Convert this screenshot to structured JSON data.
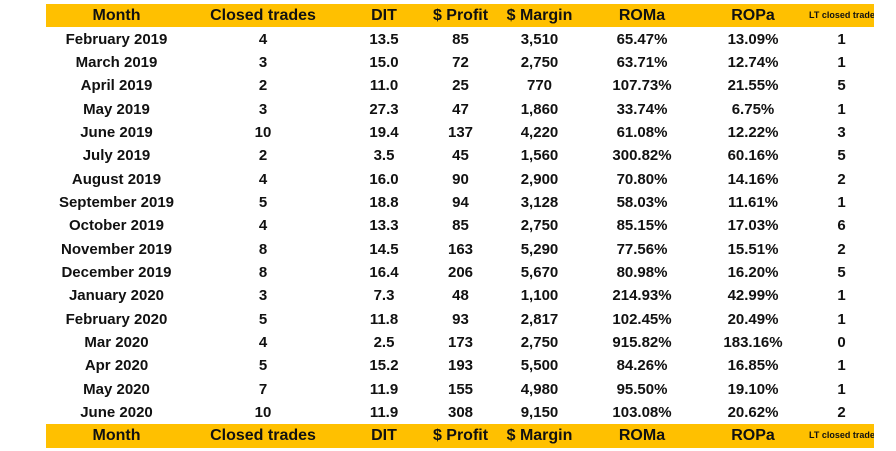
{
  "header": [
    "Month",
    "Closed trades",
    "DIT",
    "$ Profit",
    "$ Margin",
    "ROMa",
    "ROPa",
    "LT closed trades"
  ],
  "footer": [
    "Month",
    "Closed trades",
    "DIT",
    "$ Profit",
    "$ Margin",
    "ROMa",
    "ROPa",
    "LT closed trades"
  ],
  "rows": [
    [
      "February 2019",
      "4",
      "13.5",
      "85",
      "3,510",
      "65.47%",
      "13.09%",
      "1"
    ],
    [
      "March 2019",
      "3",
      "15.0",
      "72",
      "2,750",
      "63.71%",
      "12.74%",
      "1"
    ],
    [
      "April 2019",
      "2",
      "11.0",
      "25",
      "770",
      "107.73%",
      "21.55%",
      "5"
    ],
    [
      "May 2019",
      "3",
      "27.3",
      "47",
      "1,860",
      "33.74%",
      "6.75%",
      "1"
    ],
    [
      "June 2019",
      "10",
      "19.4",
      "137",
      "4,220",
      "61.08%",
      "12.22%",
      "3"
    ],
    [
      "July 2019",
      "2",
      "3.5",
      "45",
      "1,560",
      "300.82%",
      "60.16%",
      "5"
    ],
    [
      "August 2019",
      "4",
      "16.0",
      "90",
      "2,900",
      "70.80%",
      "14.16%",
      "2"
    ],
    [
      "September 2019",
      "5",
      "18.8",
      "94",
      "3,128",
      "58.03%",
      "11.61%",
      "1"
    ],
    [
      "October 2019",
      "4",
      "13.3",
      "85",
      "2,750",
      "85.15%",
      "17.03%",
      "6"
    ],
    [
      "November 2019",
      "8",
      "14.5",
      "163",
      "5,290",
      "77.56%",
      "15.51%",
      "2"
    ],
    [
      "December 2019",
      "8",
      "16.4",
      "206",
      "5,670",
      "80.98%",
      "16.20%",
      "5"
    ],
    [
      "January 2020",
      "3",
      "7.3",
      "48",
      "1,100",
      "214.93%",
      "42.99%",
      "1"
    ],
    [
      "February 2020",
      "5",
      "11.8",
      "93",
      "2,817",
      "102.45%",
      "20.49%",
      "1"
    ],
    [
      "Mar 2020",
      "4",
      "2.5",
      "173",
      "2,750",
      "915.82%",
      "183.16%",
      "0"
    ],
    [
      "Apr 2020",
      "5",
      "15.2",
      "193",
      "5,500",
      "84.26%",
      "16.85%",
      "1"
    ],
    [
      "May 2020",
      "7",
      "11.9",
      "155",
      "4,980",
      "95.50%",
      "19.10%",
      "1"
    ],
    [
      "June 2020",
      "10",
      "11.9",
      "308",
      "9,150",
      "103.08%",
      "20.62%",
      "2"
    ]
  ],
  "colors": {
    "header_bg": "#ffc000"
  }
}
